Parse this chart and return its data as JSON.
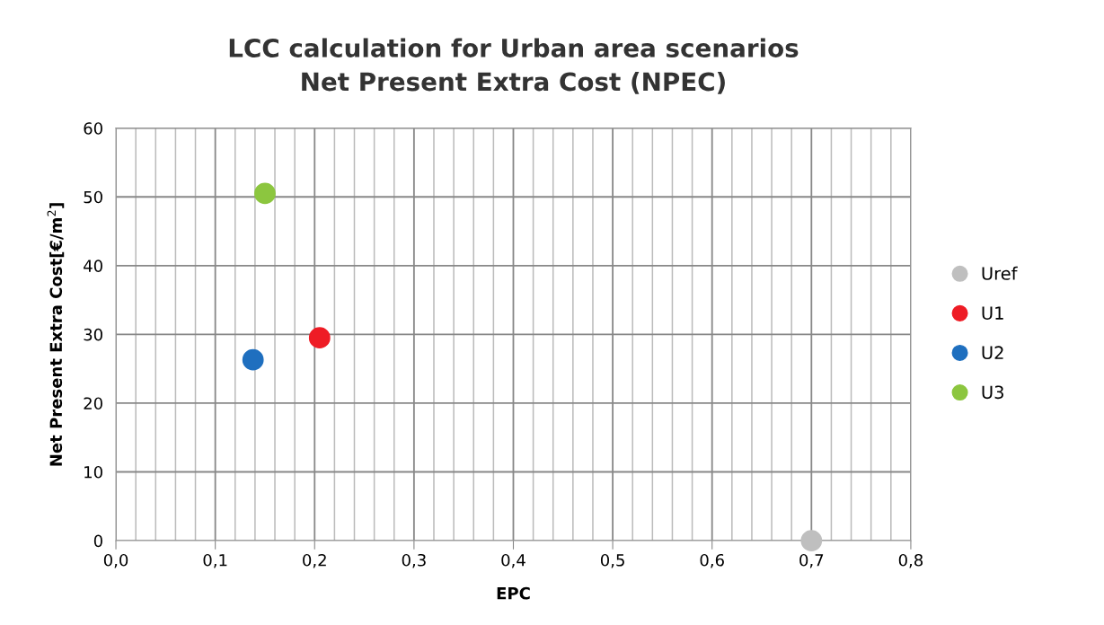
{
  "chart_data": {
    "type": "scatter",
    "title": "LCC calculation for Urban area scenarios\nNet Present Extra Cost (NPEC)",
    "xlabel": "EPC",
    "ylabel": "Net Present Extra Cost[€/m$^{2}$]",
    "series": [
      {
        "name": "Uref",
        "color": "#bfbfbf",
        "x": [
          0.7
        ],
        "values": [
          0
        ]
      },
      {
        "name": "U1",
        "color": "#ee1c25",
        "x": [
          0.205
        ],
        "values": [
          29.5
        ]
      },
      {
        "name": "U2",
        "color": "#1f6fbf",
        "x": [
          0.138
        ],
        "values": [
          26.3
        ]
      },
      {
        "name": "U3",
        "color": "#8cc63f",
        "x": [
          0.15
        ],
        "values": [
          50.5
        ]
      }
    ],
    "xlim": [
      0,
      0.8
    ],
    "ylim": [
      0,
      60
    ],
    "xticks": [
      {
        "value": 0,
        "label": "0,0"
      },
      {
        "value": 0.02,
        "label": null
      },
      {
        "value": 0.04,
        "label": null
      },
      {
        "value": 0.06,
        "label": null
      },
      {
        "value": 0.08,
        "label": null
      },
      {
        "value": 0.1,
        "label": "0,1"
      },
      {
        "value": 0.12,
        "label": null
      },
      {
        "value": 0.14,
        "label": null
      },
      {
        "value": 0.16,
        "label": null
      },
      {
        "value": 0.18,
        "label": null
      },
      {
        "value": 0.2,
        "label": "0,2"
      },
      {
        "value": 0.22,
        "label": null
      },
      {
        "value": 0.24,
        "label": null
      },
      {
        "value": 0.26,
        "label": null
      },
      {
        "value": 0.28,
        "label": null
      },
      {
        "value": 0.3,
        "label": "0,3"
      },
      {
        "value": 0.32,
        "label": null
      },
      {
        "value": 0.34,
        "label": null
      },
      {
        "value": 0.36,
        "label": null
      },
      {
        "value": 0.38,
        "label": null
      },
      {
        "value": 0.4,
        "label": "0,4"
      },
      {
        "value": 0.42,
        "label": null
      },
      {
        "value": 0.44,
        "label": null
      },
      {
        "value": 0.46,
        "label": null
      },
      {
        "value": 0.48,
        "label": null
      },
      {
        "value": 0.5,
        "label": "0,5"
      },
      {
        "value": 0.52,
        "label": null
      },
      {
        "value": 0.54,
        "label": null
      },
      {
        "value": 0.56,
        "label": null
      },
      {
        "value": 0.58,
        "label": null
      },
      {
        "value": 0.6,
        "label": "0,6"
      },
      {
        "value": 0.62,
        "label": null
      },
      {
        "value": 0.64,
        "label": null
      },
      {
        "value": 0.66,
        "label": null
      },
      {
        "value": 0.68,
        "label": null
      },
      {
        "value": 0.7,
        "label": "0,7"
      },
      {
        "value": 0.72,
        "label": null
      },
      {
        "value": 0.74,
        "label": null
      },
      {
        "value": 0.76,
        "label": null
      },
      {
        "value": 0.78,
        "label": null
      },
      {
        "value": 0.8,
        "label": "0,8"
      }
    ],
    "yticks": [
      0,
      10,
      20,
      30,
      40,
      50,
      60
    ],
    "grid": true,
    "legend": "right",
    "marker": "circle"
  }
}
